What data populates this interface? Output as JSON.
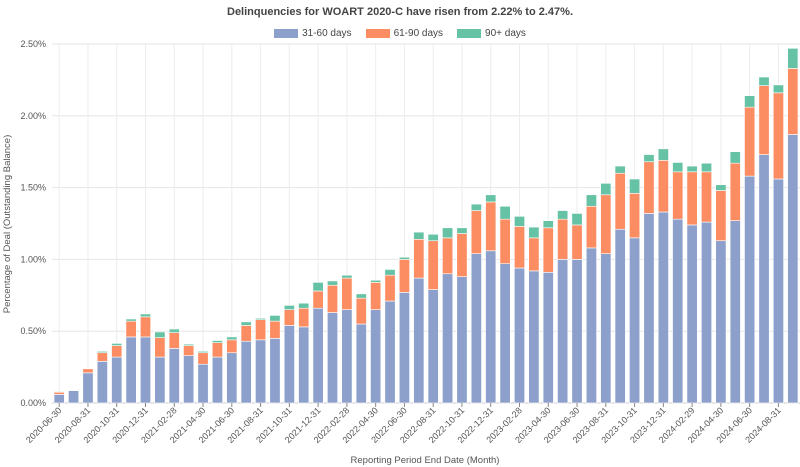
{
  "chart_data": {
    "type": "bar",
    "stacked": true,
    "title": "Delinquencies for WOART 2020-C have risen from 2.22% to 2.47%.",
    "xlabel": "Reporting Period End Date (Month)",
    "ylabel": "Percentage of Deal (Outstanding Balance)",
    "ylim": [
      0,
      2.5
    ],
    "yticks": [
      "0.00%",
      "0.50%",
      "1.00%",
      "1.50%",
      "2.00%",
      "2.50%"
    ],
    "grid": true,
    "legend_position": "top",
    "categories": [
      "2020-06-30",
      "2020-07-31",
      "2020-08-31",
      "2020-09-30",
      "2020-10-31",
      "2020-11-30",
      "2020-12-31",
      "2021-01-31",
      "2021-02-28",
      "2021-03-31",
      "2021-04-30",
      "2021-05-31",
      "2021-06-30",
      "2021-07-31",
      "2021-08-31",
      "2021-09-30",
      "2021-10-31",
      "2021-11-30",
      "2021-12-31",
      "2022-01-31",
      "2022-02-28",
      "2022-03-31",
      "2022-04-30",
      "2022-05-31",
      "2022-06-30",
      "2022-07-31",
      "2022-08-31",
      "2022-09-30",
      "2022-10-31",
      "2022-11-30",
      "2022-12-31",
      "2023-01-31",
      "2023-02-28",
      "2023-03-31",
      "2023-04-30",
      "2023-05-31",
      "2023-06-30",
      "2023-07-31",
      "2023-08-31",
      "2023-09-30",
      "2023-10-31",
      "2023-11-30",
      "2023-12-31",
      "2024-01-31",
      "2024-02-29",
      "2024-03-31",
      "2024-04-30",
      "2024-05-31",
      "2024-06-30",
      "2024-07-31",
      "2024-08-31",
      "2024-09-30"
    ],
    "series": [
      {
        "name": "31-60 days",
        "color": "#8DA0CB",
        "values": [
          0.06,
          0.086,
          0.21,
          0.29,
          0.32,
          0.46,
          0.46,
          0.32,
          0.38,
          0.33,
          0.27,
          0.32,
          0.35,
          0.43,
          0.44,
          0.45,
          0.54,
          0.53,
          0.66,
          0.63,
          0.65,
          0.55,
          0.65,
          0.71,
          0.77,
          0.87,
          0.79,
          0.9,
          0.88,
          1.04,
          1.06,
          0.97,
          0.94,
          0.92,
          0.91,
          1.0,
          1.0,
          1.08,
          1.04,
          1.21,
          1.15,
          1.32,
          1.33,
          1.28,
          1.24,
          1.26,
          1.13,
          1.27,
          1.58,
          1.73,
          1.56,
          1.87
        ]
      },
      {
        "name": "61-90 days",
        "color": "#FC8D62",
        "values": [
          0.015,
          0,
          0.028,
          0.06,
          0.08,
          0.11,
          0.14,
          0.135,
          0.11,
          0.07,
          0.08,
          0.1,
          0.09,
          0.11,
          0.14,
          0.12,
          0.11,
          0.13,
          0.12,
          0.19,
          0.22,
          0.18,
          0.19,
          0.18,
          0.23,
          0.27,
          0.34,
          0.25,
          0.3,
          0.3,
          0.34,
          0.31,
          0.29,
          0.23,
          0.31,
          0.28,
          0.24,
          0.29,
          0.41,
          0.39,
          0.31,
          0.36,
          0.36,
          0.33,
          0.37,
          0.35,
          0.35,
          0.4,
          0.48,
          0.48,
          0.6,
          0.46
        ]
      },
      {
        "name": "90+ days",
        "color": "#66C2A5",
        "values": [
          0.005,
          0,
          0,
          0.01,
          0.015,
          0.015,
          0.02,
          0.04,
          0.025,
          0.01,
          0.01,
          0.015,
          0.02,
          0.025,
          0.01,
          0.04,
          0.03,
          0.035,
          0.06,
          0.03,
          0.02,
          0.03,
          0.015,
          0.04,
          0.015,
          0.05,
          0.045,
          0.07,
          0.04,
          0.045,
          0.05,
          0.09,
          0.07,
          0.075,
          0.05,
          0.06,
          0.08,
          0.08,
          0.08,
          0.05,
          0.1,
          0.05,
          0.08,
          0.065,
          0.04,
          0.06,
          0.04,
          0.08,
          0.08,
          0.06,
          0.055,
          0.14
        ]
      }
    ]
  }
}
